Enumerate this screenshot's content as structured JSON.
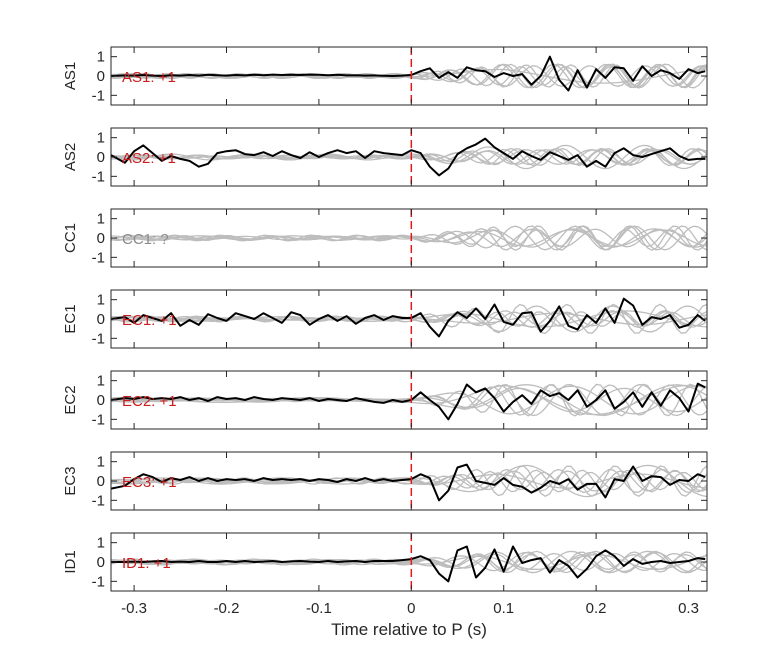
{
  "chart_data": {
    "type": "line",
    "xlabel": "Time relative to P (s)",
    "xlim": [
      -0.325,
      0.32
    ],
    "ylim": [
      -1.5,
      1.5
    ],
    "x_ticks": [
      -0.3,
      -0.2,
      -0.1,
      0,
      0.1,
      0.2,
      0.3
    ],
    "x_tick_labels": [
      "-0.3",
      "-0.2",
      "-0.1",
      "0",
      "0.1",
      "0.2",
      "0.3"
    ],
    "y_ticks": [
      -1,
      0,
      1
    ],
    "y_tick_labels": [
      "-1",
      "0",
      "1"
    ],
    "marker_line": {
      "x": 0,
      "color": "#e31a1c",
      "style": "dashed"
    },
    "colors": {
      "trace": "#000000",
      "background_traces": "#bdbdbd",
      "annotation_positive": "#c81e1e",
      "annotation_unknown": "#8c8c8c",
      "axes": "#262626"
    },
    "panels": [
      {
        "station": "AS1",
        "annotation": "AS1: +1",
        "annotation_color": "#c81e1e",
        "x": [
          -0.325,
          -0.31,
          -0.3,
          -0.29,
          -0.28,
          -0.27,
          -0.26,
          -0.25,
          -0.24,
          -0.23,
          -0.22,
          -0.21,
          -0.2,
          -0.19,
          -0.18,
          -0.17,
          -0.16,
          -0.15,
          -0.14,
          -0.13,
          -0.12,
          -0.11,
          -0.1,
          -0.09,
          -0.08,
          -0.07,
          -0.06,
          -0.05,
          -0.04,
          -0.03,
          -0.02,
          -0.01,
          0,
          0.01,
          0.02,
          0.03,
          0.04,
          0.05,
          0.06,
          0.07,
          0.08,
          0.09,
          0.1,
          0.11,
          0.12,
          0.13,
          0.14,
          0.15,
          0.16,
          0.17,
          0.18,
          0.19,
          0.2,
          0.21,
          0.22,
          0.23,
          0.24,
          0.25,
          0.26,
          0.27,
          0.28,
          0.29,
          0.3,
          0.31,
          0.318
        ],
        "y": [
          0.0,
          0.03,
          0.02,
          0.05,
          0.02,
          0.0,
          0.04,
          0.02,
          0.05,
          0.02,
          0.06,
          0.04,
          0.02,
          0.05,
          0.03,
          0.06,
          0.04,
          0.07,
          0.05,
          0.06,
          0.05,
          0.07,
          0.06,
          0.04,
          0.06,
          0.03,
          0.04,
          0.02,
          0.03,
          0.01,
          0.0,
          0.02,
          0.05,
          0.25,
          0.4,
          -0.1,
          0.2,
          -0.1,
          0.45,
          0.3,
          0.25,
          -0.05,
          0.15,
          0.0,
          0.1,
          -0.45,
          0.0,
          1.0,
          -0.2,
          -0.75,
          0.3,
          -0.6,
          0.35,
          -0.1,
          0.45,
          0.4,
          -0.25,
          0.5,
          0.0,
          0.3,
          0.15,
          -0.15,
          0.35,
          0.15,
          0.25
        ]
      },
      {
        "station": "AS2",
        "annotation": "AS2: +1",
        "annotation_color": "#c81e1e",
        "x": [
          -0.325,
          -0.31,
          -0.3,
          -0.29,
          -0.28,
          -0.27,
          -0.26,
          -0.25,
          -0.24,
          -0.23,
          -0.22,
          -0.21,
          -0.2,
          -0.19,
          -0.18,
          -0.17,
          -0.16,
          -0.15,
          -0.14,
          -0.13,
          -0.12,
          -0.11,
          -0.1,
          -0.09,
          -0.08,
          -0.07,
          -0.06,
          -0.05,
          -0.04,
          -0.03,
          -0.02,
          -0.01,
          0,
          0.01,
          0.02,
          0.03,
          0.04,
          0.05,
          0.06,
          0.07,
          0.08,
          0.09,
          0.1,
          0.11,
          0.12,
          0.13,
          0.14,
          0.15,
          0.16,
          0.17,
          0.18,
          0.19,
          0.2,
          0.21,
          0.22,
          0.23,
          0.24,
          0.25,
          0.26,
          0.27,
          0.28,
          0.29,
          0.3,
          0.31,
          0.318
        ],
        "y": [
          0.1,
          -0.3,
          0.3,
          0.6,
          0.2,
          -0.2,
          0.05,
          -0.1,
          -0.2,
          -0.5,
          -0.35,
          0.2,
          0.3,
          0.35,
          0.15,
          0.1,
          0.25,
          0.05,
          0.3,
          0.1,
          -0.05,
          0.25,
          0.0,
          0.2,
          0.35,
          0.2,
          0.3,
          -0.05,
          0.3,
          0.2,
          0.15,
          0.1,
          0.35,
          0.2,
          -0.5,
          -0.95,
          -0.6,
          0.15,
          0.45,
          0.65,
          0.95,
          0.5,
          0.2,
          -0.1,
          0.3,
          0.05,
          -0.15,
          0.25,
          0.05,
          -0.15,
          0.1,
          -0.5,
          -0.2,
          -0.5,
          0.2,
          0.45,
          0.1,
          0.0,
          0.15,
          0.3,
          0.45,
          0.05,
          -0.15,
          -0.1,
          -0.1
        ]
      },
      {
        "station": "CC1",
        "annotation": "CC1: ?",
        "annotation_color": "#8c8c8c",
        "x": [],
        "y": []
      },
      {
        "station": "EC1",
        "annotation": "EC1: +1",
        "annotation_color": "#c81e1e",
        "x": [
          -0.325,
          -0.31,
          -0.3,
          -0.29,
          -0.28,
          -0.27,
          -0.26,
          -0.25,
          -0.24,
          -0.23,
          -0.22,
          -0.21,
          -0.2,
          -0.19,
          -0.18,
          -0.17,
          -0.16,
          -0.15,
          -0.14,
          -0.13,
          -0.12,
          -0.11,
          -0.1,
          -0.09,
          -0.08,
          -0.07,
          -0.06,
          -0.05,
          -0.04,
          -0.03,
          -0.02,
          -0.01,
          0,
          0.01,
          0.02,
          0.03,
          0.04,
          0.05,
          0.06,
          0.07,
          0.08,
          0.09,
          0.1,
          0.11,
          0.12,
          0.13,
          0.14,
          0.15,
          0.16,
          0.17,
          0.18,
          0.19,
          0.2,
          0.21,
          0.22,
          0.23,
          0.24,
          0.25,
          0.26,
          0.27,
          0.28,
          0.29,
          0.3,
          0.31,
          0.318
        ],
        "y": [
          0.0,
          0.1,
          -0.2,
          0.2,
          0.05,
          -0.1,
          0.3,
          -0.35,
          -0.05,
          -0.3,
          0.25,
          0.05,
          -0.1,
          0.3,
          0.15,
          0.0,
          0.3,
          0.05,
          -0.2,
          0.35,
          0.2,
          -0.3,
          0.0,
          0.2,
          -0.1,
          0.15,
          -0.25,
          0.05,
          0.2,
          -0.05,
          0.15,
          0.05,
          0.05,
          0.3,
          -0.4,
          -0.9,
          -0.1,
          0.35,
          0.05,
          0.55,
          0.0,
          0.75,
          -0.15,
          -0.3,
          0.3,
          0.35,
          -0.65,
          -0.1,
          0.65,
          -0.35,
          -0.55,
          0.2,
          -0.2,
          0.55,
          -0.2,
          1.05,
          0.7,
          -0.3,
          0.1,
          0.0,
          0.2,
          -0.45,
          -0.3,
          0.2,
          -0.1
        ]
      },
      {
        "station": "EC2",
        "annotation": "EC2: +1",
        "annotation_color": "#c81e1e",
        "x": [
          -0.325,
          -0.31,
          -0.3,
          -0.29,
          -0.28,
          -0.27,
          -0.26,
          -0.25,
          -0.24,
          -0.23,
          -0.22,
          -0.21,
          -0.2,
          -0.19,
          -0.18,
          -0.17,
          -0.16,
          -0.15,
          -0.14,
          -0.13,
          -0.12,
          -0.11,
          -0.1,
          -0.09,
          -0.08,
          -0.07,
          -0.06,
          -0.05,
          -0.04,
          -0.03,
          -0.02,
          -0.01,
          0,
          0.01,
          0.02,
          0.03,
          0.04,
          0.05,
          0.06,
          0.07,
          0.08,
          0.09,
          0.1,
          0.11,
          0.12,
          0.13,
          0.14,
          0.15,
          0.16,
          0.17,
          0.18,
          0.19,
          0.2,
          0.21,
          0.22,
          0.23,
          0.24,
          0.25,
          0.26,
          0.27,
          0.28,
          0.29,
          0.3,
          0.31,
          0.318
        ],
        "y": [
          0.0,
          0.1,
          0.05,
          0.15,
          0.05,
          0.1,
          0.05,
          0.15,
          0.0,
          0.1,
          -0.05,
          0.15,
          0.05,
          0.1,
          0.0,
          0.15,
          0.05,
          0.0,
          0.1,
          0.05,
          0.0,
          0.1,
          -0.05,
          0.05,
          0.0,
          -0.05,
          0.1,
          0.0,
          -0.1,
          -0.15,
          0.0,
          -0.1,
          0.0,
          0.4,
          0.0,
          -0.35,
          -1.0,
          -0.2,
          0.8,
          0.4,
          0.6,
          0.1,
          -0.6,
          -0.1,
          0.25,
          -0.2,
          0.5,
          0.2,
          0.35,
          0.0,
          0.5,
          -0.35,
          0.0,
          0.5,
          -0.45,
          -0.1,
          0.4,
          -0.35,
          0.4,
          -0.3,
          0.5,
          0.1,
          -0.6,
          0.85,
          0.65
        ]
      },
      {
        "station": "EC3",
        "annotation": "EC3: +1",
        "annotation_color": "#c81e1e",
        "x": [
          -0.325,
          -0.31,
          -0.3,
          -0.29,
          -0.28,
          -0.27,
          -0.26,
          -0.25,
          -0.24,
          -0.23,
          -0.22,
          -0.21,
          -0.2,
          -0.19,
          -0.18,
          -0.17,
          -0.16,
          -0.15,
          -0.14,
          -0.13,
          -0.12,
          -0.11,
          -0.1,
          -0.09,
          -0.08,
          -0.07,
          -0.06,
          -0.05,
          -0.04,
          -0.03,
          -0.02,
          -0.01,
          0,
          0.01,
          0.02,
          0.03,
          0.04,
          0.05,
          0.06,
          0.07,
          0.08,
          0.09,
          0.1,
          0.11,
          0.12,
          0.13,
          0.14,
          0.15,
          0.16,
          0.17,
          0.18,
          0.19,
          0.2,
          0.21,
          0.22,
          0.23,
          0.24,
          0.25,
          0.26,
          0.27,
          0.28,
          0.29,
          0.3,
          0.31,
          0.318
        ],
        "y": [
          -0.4,
          -0.25,
          0.1,
          0.35,
          0.2,
          -0.05,
          0.15,
          0.05,
          0.2,
          0.0,
          0.15,
          0.0,
          0.1,
          0.05,
          0.1,
          0.0,
          0.15,
          0.05,
          0.1,
          0.05,
          0.1,
          0.0,
          0.1,
          0.05,
          -0.05,
          0.1,
          0.0,
          0.15,
          0.0,
          0.1,
          0.0,
          0.05,
          0.1,
          0.35,
          0.15,
          -1.0,
          -0.5,
          0.7,
          0.85,
          0.0,
          -0.1,
          -0.2,
          0.15,
          -0.2,
          -0.3,
          -0.6,
          -0.35,
          0.0,
          -0.15,
          0.1,
          -0.45,
          -0.15,
          -0.15,
          -0.85,
          0.1,
          0.0,
          0.75,
          0.0,
          0.25,
          0.2,
          -0.2,
          0.05,
          0.0,
          0.35,
          0.2
        ]
      },
      {
        "station": "ID1",
        "annotation": "ID1: +1",
        "annotation_color": "#c81e1e",
        "x": [
          -0.325,
          -0.31,
          -0.3,
          -0.29,
          -0.28,
          -0.27,
          -0.26,
          -0.25,
          -0.24,
          -0.23,
          -0.22,
          -0.21,
          -0.2,
          -0.19,
          -0.18,
          -0.17,
          -0.16,
          -0.15,
          -0.14,
          -0.13,
          -0.12,
          -0.11,
          -0.1,
          -0.09,
          -0.08,
          -0.07,
          -0.06,
          -0.05,
          -0.04,
          -0.03,
          -0.02,
          -0.01,
          0,
          0.01,
          0.02,
          0.03,
          0.04,
          0.05,
          0.06,
          0.07,
          0.08,
          0.09,
          0.1,
          0.11,
          0.12,
          0.13,
          0.14,
          0.15,
          0.16,
          0.17,
          0.18,
          0.19,
          0.2,
          0.21,
          0.22,
          0.23,
          0.24,
          0.25,
          0.26,
          0.27,
          0.28,
          0.29,
          0.3,
          0.31,
          0.318
        ],
        "y": [
          0.0,
          0.0,
          0.02,
          0.0,
          0.03,
          0.05,
          0.0,
          0.02,
          0.0,
          0.05,
          0.0,
          0.0,
          0.05,
          0.0,
          0.05,
          0.0,
          0.02,
          0.05,
          0.0,
          0.03,
          0.05,
          0.02,
          0.0,
          0.05,
          0.0,
          0.03,
          0.05,
          0.0,
          0.05,
          0.05,
          0.05,
          0.1,
          0.15,
          0.3,
          0.1,
          -0.6,
          -1.0,
          0.6,
          0.8,
          -0.8,
          -0.3,
          0.65,
          -0.5,
          0.8,
          -0.05,
          0.1,
          0.2,
          -0.55,
          0.1,
          -0.2,
          -0.8,
          -0.35,
          0.3,
          0.6,
          0.3,
          -0.2,
          0.15,
          -0.1,
          0.0,
          0.05,
          -0.05,
          0.0,
          0.05,
          0.2,
          0.15
        ]
      }
    ]
  }
}
